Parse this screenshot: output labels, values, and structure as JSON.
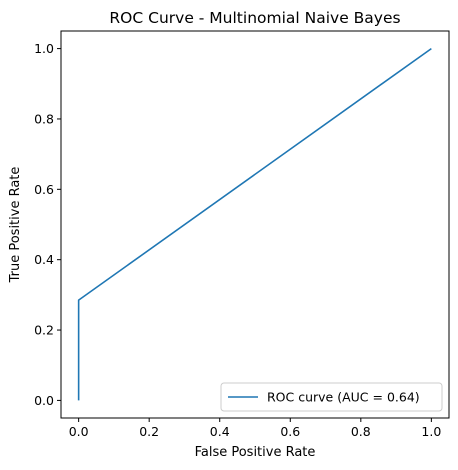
{
  "chart_data": {
    "type": "line",
    "title": "ROC Curve - Multinomial Naive Bayes",
    "xlabel": "False Positive Rate",
    "ylabel": "True Positive Rate",
    "xlim": [
      -0.05,
      1.05
    ],
    "ylim": [
      -0.05,
      1.05
    ],
    "xticks": [
      "0.0",
      "0.2",
      "0.4",
      "0.6",
      "0.8",
      "1.0"
    ],
    "yticks": [
      "0.0",
      "0.2",
      "0.4",
      "0.6",
      "0.8",
      "1.0"
    ],
    "grid": false,
    "legend_position": "lower-right",
    "series": [
      {
        "name": "ROC curve (AUC = 0.64)",
        "color": "#1f77b4",
        "x": [
          0.0,
          0.0,
          1.0
        ],
        "y": [
          0.0,
          0.285,
          1.0
        ]
      }
    ]
  }
}
